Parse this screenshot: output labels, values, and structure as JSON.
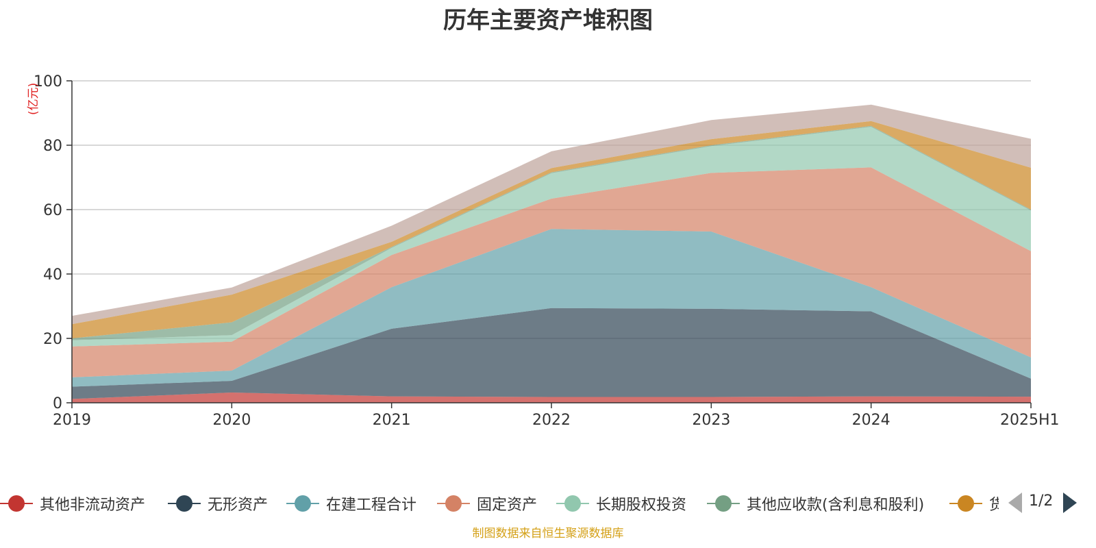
{
  "chart_data": {
    "type": "area",
    "title": "历年主要资产堆积图",
    "unit_label": "(亿元)",
    "categories": [
      "2019",
      "2020",
      "2021",
      "2022",
      "2023",
      "2024",
      "2025H1"
    ],
    "ylim": [
      0,
      100
    ],
    "yticks": [
      0,
      20,
      40,
      60,
      80,
      100
    ],
    "grid": true,
    "stacked": true,
    "legend_position": "bottom",
    "series": [
      {
        "name": "其他非流动资产",
        "color": "#c23531",
        "values": [
          1.2,
          3.2,
          2.0,
          1.8,
          1.8,
          2.0,
          1.9
        ]
      },
      {
        "name": "无形资产",
        "color": "#2f4554",
        "values": [
          3.8,
          3.6,
          21.0,
          27.6,
          27.4,
          26.4,
          5.6
        ]
      },
      {
        "name": "在建工程合计",
        "color": "#61a0a8",
        "values": [
          2.9,
          3.2,
          12.9,
          24.6,
          24.0,
          7.5,
          6.6
        ]
      },
      {
        "name": "固定资产",
        "color": "#d48265",
        "values": [
          9.6,
          9.0,
          10.0,
          9.4,
          18.2,
          37.2,
          33.0
        ]
      },
      {
        "name": "长期股权投资",
        "color": "#91c7ae",
        "values": [
          1.9,
          2.0,
          2.2,
          7.9,
          8.3,
          12.6,
          12.6
        ]
      },
      {
        "name": "其他应收款(含利息和股利)",
        "color": "#749f83",
        "values": [
          0.6,
          4.0,
          0.3,
          0.3,
          0.3,
          0.3,
          0.3
        ]
      },
      {
        "name": "货币资金",
        "color": "#ca8622",
        "values": [
          4.4,
          8.6,
          1.6,
          1.3,
          1.9,
          1.5,
          13.0
        ]
      },
      {
        "name": "",
        "color": "#bda29a",
        "values": [
          2.6,
          2.2,
          5.0,
          5.2,
          5.9,
          5.1,
          9.0
        ]
      }
    ]
  },
  "legend": {
    "visible_labels": [
      "其他非流动资产",
      "无形资产",
      "在建工程合计",
      "固定资产",
      "长期股权投资",
      "其他应收款(含利息和股利)",
      "货"
    ]
  },
  "pager": {
    "text": "1/2"
  },
  "source_note": "制图数据来自恒生聚源数据库"
}
